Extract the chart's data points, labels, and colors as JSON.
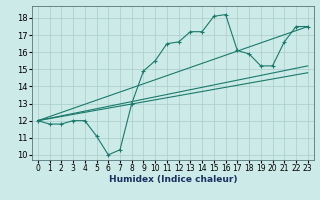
{
  "title": "",
  "xlabel": "Humidex (Indice chaleur)",
  "bg_color": "#cceae8",
  "grid_color": "#aacccc",
  "line_color": "#1a7a6a",
  "xlim": [
    -0.5,
    23.5
  ],
  "ylim": [
    9.7,
    18.7
  ],
  "xticks": [
    0,
    1,
    2,
    3,
    4,
    5,
    6,
    7,
    8,
    9,
    10,
    11,
    12,
    13,
    14,
    15,
    16,
    17,
    18,
    19,
    20,
    21,
    22,
    23
  ],
  "yticks": [
    10,
    11,
    12,
    13,
    14,
    15,
    16,
    17,
    18
  ],
  "main_series": {
    "x": [
      0,
      1,
      2,
      3,
      4,
      5,
      6,
      7,
      8,
      9,
      10,
      11,
      12,
      13,
      14,
      15,
      16,
      17,
      18,
      19,
      20,
      21,
      22,
      23
    ],
    "y": [
      12,
      11.8,
      11.8,
      12,
      12,
      11.1,
      10.0,
      10.3,
      13.0,
      14.9,
      15.5,
      16.5,
      16.6,
      17.2,
      17.2,
      18.1,
      18.2,
      16.1,
      15.9,
      15.2,
      15.2,
      16.6,
      17.5,
      17.5
    ]
  },
  "straight_lines": [
    {
      "x": [
        0,
        23
      ],
      "y": [
        12,
        17.5
      ]
    },
    {
      "x": [
        0,
        23
      ],
      "y": [
        12,
        15.2
      ]
    },
    {
      "x": [
        0,
        23
      ],
      "y": [
        12,
        14.8
      ]
    }
  ]
}
